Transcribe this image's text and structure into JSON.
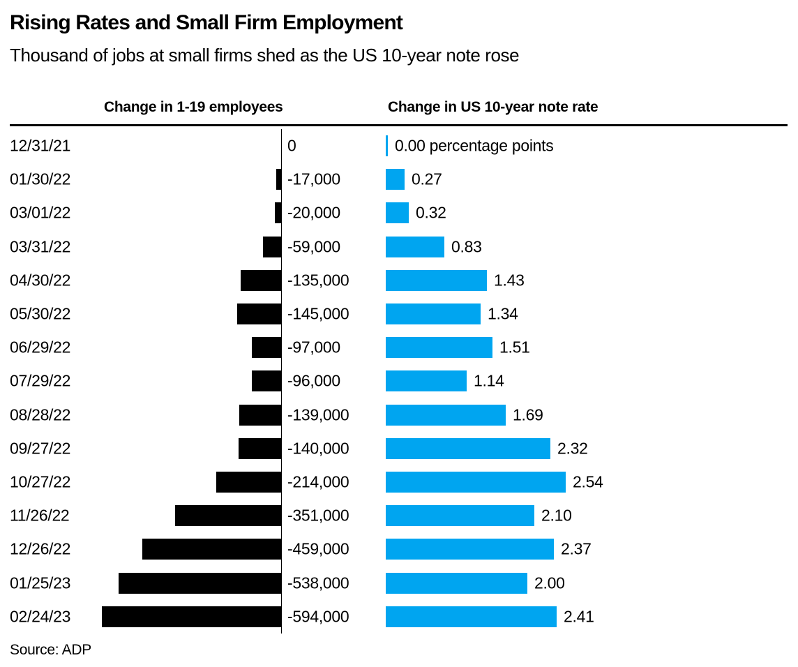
{
  "page": {
    "background": "#ffffff",
    "text_color": "#000000",
    "accent_blue": "#00A5F0"
  },
  "chart_data": {
    "type": "bar",
    "orientation": "horizontal",
    "title": "Rising Rates and Small Firm Employment",
    "subtitle": "Thousand of jobs at small firms shed as the US 10-year note rose",
    "source": "Source: ADP",
    "column_headers": [
      "Change in 1-19 employees",
      "Change in US 10-year note rate"
    ],
    "grid": "none",
    "legend_position": "column-headers",
    "categories": [
      "12/31/21",
      "01/30/22",
      "03/01/22",
      "03/31/22",
      "04/30/22",
      "05/30/22",
      "06/29/22",
      "07/29/22",
      "08/28/22",
      "09/27/22",
      "10/27/22",
      "11/26/22",
      "12/26/22",
      "01/25/23",
      "02/24/23"
    ],
    "series": [
      {
        "name": "Change in 1-19 employees",
        "color": "#000000",
        "direction": "left",
        "axis_range": [
          -594000,
          0
        ],
        "values": [
          0,
          -17000,
          -20000,
          -59000,
          -135000,
          -145000,
          -97000,
          -96000,
          -139000,
          -140000,
          -214000,
          -351000,
          -459000,
          -538000,
          -594000
        ],
        "labels": [
          "0",
          "-17,000",
          "-20,000",
          "-59,000",
          "-135,000",
          "-145,000",
          "-97,000",
          "-96,000",
          "-139,000",
          "-140,000",
          "-214,000",
          "-351,000",
          "-459,000",
          "-538,000",
          "-594,000"
        ]
      },
      {
        "name": "Change in US 10-year note rate",
        "unit": "percentage points",
        "color": "#00A5F0",
        "direction": "right",
        "axis_range": [
          0,
          2.54
        ],
        "values": [
          0.0,
          0.27,
          0.32,
          0.83,
          1.43,
          1.34,
          1.51,
          1.14,
          1.69,
          2.32,
          2.54,
          2.1,
          2.37,
          2.0,
          2.41
        ],
        "labels": [
          "0.00 percentage points",
          "0.27",
          "0.32",
          "0.83",
          "1.43",
          "1.34",
          "1.51",
          "1.14",
          "1.69",
          "2.32",
          "2.54",
          "2.10",
          "2.37",
          "2.00",
          "2.41"
        ]
      }
    ]
  }
}
